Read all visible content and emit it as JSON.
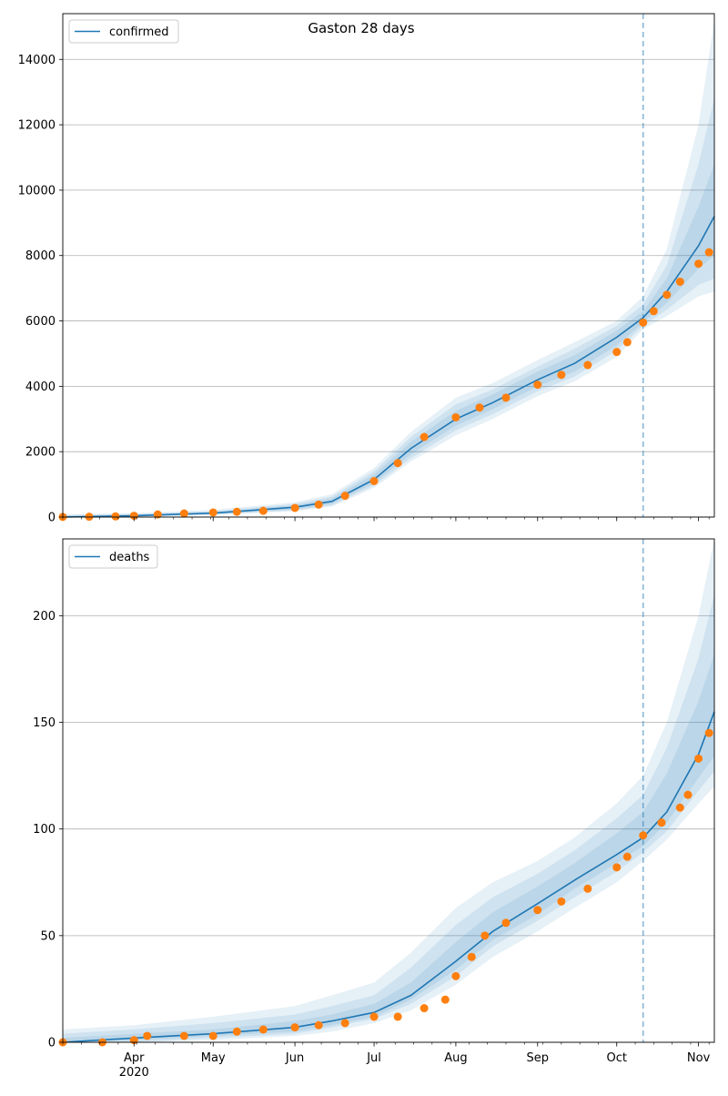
{
  "title": "Gaston 28 days",
  "colors": {
    "model": "#1f77b4",
    "observed": "#ff7f0e",
    "band": "#1f77b4",
    "grid": "#b0b0b0",
    "forecast_line": "#1f77b4"
  },
  "x_axis": {
    "start_date": "2020-03-05",
    "end_date": "2020-11-07",
    "month_ticks": [
      {
        "date": "2020-04-01",
        "label": "Apr",
        "sub": "2020"
      },
      {
        "date": "2020-05-01",
        "label": "May",
        "sub": ""
      },
      {
        "date": "2020-06-01",
        "label": "Jun",
        "sub": ""
      },
      {
        "date": "2020-07-01",
        "label": "Jul",
        "sub": ""
      },
      {
        "date": "2020-08-01",
        "label": "Aug",
        "sub": ""
      },
      {
        "date": "2020-09-01",
        "label": "Sep",
        "sub": ""
      },
      {
        "date": "2020-10-01",
        "label": "Oct",
        "sub": ""
      },
      {
        "date": "2020-11-01",
        "label": "Nov",
        "sub": ""
      }
    ],
    "forecast_start": "2020-10-11"
  },
  "chart_data": [
    {
      "type": "line",
      "legend": "confirmed",
      "legend_position": "top-left",
      "grid": "horizontal",
      "ylim": [
        0,
        15400
      ],
      "yticks": [
        0,
        2000,
        4000,
        6000,
        8000,
        10000,
        12000,
        14000
      ],
      "model_curve": {
        "x": [
          "2020-03-05",
          "2020-04-01",
          "2020-05-01",
          "2020-06-01",
          "2020-06-15",
          "2020-07-01",
          "2020-07-15",
          "2020-08-01",
          "2020-08-15",
          "2020-09-01",
          "2020-09-15",
          "2020-10-01",
          "2020-10-11",
          "2020-10-20",
          "2020-11-01",
          "2020-11-07"
        ],
        "y": [
          0,
          40,
          120,
          300,
          480,
          1150,
          2100,
          3000,
          3500,
          4200,
          4700,
          5500,
          6100,
          6900,
          8300,
          9200
        ]
      },
      "bands": [
        {
          "upper": [
            80,
            120,
            220,
            450,
            700,
            1500,
            2600,
            3650,
            4100,
            4800,
            5350,
            6000,
            6750,
            8200,
            12000,
            15200
          ],
          "lower": [
            0,
            10,
            60,
            180,
            320,
            900,
            1700,
            2500,
            3000,
            3700,
            4150,
            4900,
            5750,
            6150,
            6750,
            6900
          ]
        },
        {
          "upper": [
            60,
            90,
            180,
            400,
            630,
            1400,
            2450,
            3450,
            3900,
            4600,
            5150,
            5850,
            6500,
            7700,
            10800,
            12800
          ],
          "lower": [
            0,
            15,
            75,
            200,
            360,
            970,
            1800,
            2650,
            3150,
            3850,
            4300,
            5100,
            5850,
            6350,
            7100,
            7300
          ]
        },
        {
          "upper": [
            40,
            70,
            150,
            360,
            570,
            1300,
            2300,
            3250,
            3750,
            4450,
            4950,
            5700,
            6300,
            7300,
            9500,
            10800
          ],
          "lower": [
            0,
            20,
            90,
            230,
            400,
            1040,
            1920,
            2800,
            3300,
            4000,
            4450,
            5250,
            5950,
            6550,
            7600,
            8000
          ]
        }
      ],
      "observed": {
        "x": [
          "2020-03-05",
          "2020-03-15",
          "2020-03-25",
          "2020-04-01",
          "2020-04-10",
          "2020-04-20",
          "2020-05-01",
          "2020-05-10",
          "2020-05-20",
          "2020-06-01",
          "2020-06-10",
          "2020-06-20",
          "2020-07-01",
          "2020-07-10",
          "2020-07-20",
          "2020-08-01",
          "2020-08-10",
          "2020-08-20",
          "2020-09-01",
          "2020-09-10",
          "2020-09-20",
          "2020-10-01",
          "2020-10-05",
          "2020-10-11",
          "2020-10-15",
          "2020-10-20",
          "2020-10-25",
          "2020-11-01",
          "2020-11-05"
        ],
        "y": [
          5,
          10,
          20,
          40,
          80,
          110,
          140,
          160,
          190,
          280,
          380,
          650,
          1100,
          1650,
          2450,
          3050,
          3350,
          3650,
          4050,
          4350,
          4650,
          5050,
          5350,
          5950,
          6300,
          6800,
          7200,
          7750,
          8100
        ]
      }
    },
    {
      "type": "line",
      "legend": "deaths",
      "legend_position": "top-left",
      "grid": "horizontal",
      "ylim": [
        0,
        236
      ],
      "yticks": [
        0,
        50,
        100,
        150,
        200
      ],
      "model_curve": {
        "x": [
          "2020-03-05",
          "2020-04-01",
          "2020-05-01",
          "2020-06-01",
          "2020-06-15",
          "2020-07-01",
          "2020-07-15",
          "2020-08-01",
          "2020-08-15",
          "2020-09-01",
          "2020-09-15",
          "2020-10-01",
          "2020-10-11",
          "2020-10-20",
          "2020-11-01",
          "2020-11-07"
        ],
        "y": [
          0,
          2,
          4,
          7,
          10,
          14,
          22,
          38,
          52,
          65,
          76,
          88,
          96,
          108,
          135,
          155
        ]
      },
      "bands": [
        {
          "upper": [
            6,
            8,
            12,
            17,
            22,
            28,
            42,
            63,
            75,
            85,
            96,
            112,
            125,
            150,
            200,
            236
          ],
          "lower": [
            0,
            0,
            1,
            3,
            5,
            9,
            15,
            27,
            40,
            52,
            63,
            75,
            85,
            95,
            112,
            120
          ]
        },
        {
          "upper": [
            4,
            6,
            9,
            13,
            17,
            22,
            35,
            55,
            68,
            79,
            90,
            105,
            116,
            138,
            180,
            210
          ],
          "lower": [
            0,
            0,
            2,
            4,
            7,
            11,
            18,
            31,
            45,
            57,
            68,
            80,
            89,
            99,
            118,
            127
          ]
        },
        {
          "upper": [
            2,
            4,
            6,
            10,
            13,
            18,
            28,
            47,
            61,
            73,
            84,
            98,
            108,
            126,
            160,
            182
          ],
          "lower": [
            0,
            1,
            3,
            5,
            8,
            12,
            20,
            34,
            48,
            60,
            72,
            84,
            92,
            103,
            124,
            134
          ]
        }
      ],
      "observed": {
        "x": [
          "2020-03-05",
          "2020-03-20",
          "2020-04-01",
          "2020-04-06",
          "2020-04-20",
          "2020-05-01",
          "2020-05-10",
          "2020-05-20",
          "2020-06-01",
          "2020-06-10",
          "2020-06-20",
          "2020-07-01",
          "2020-07-10",
          "2020-07-20",
          "2020-07-28",
          "2020-08-01",
          "2020-08-07",
          "2020-08-12",
          "2020-08-20",
          "2020-09-01",
          "2020-09-10",
          "2020-09-20",
          "2020-10-01",
          "2020-10-05",
          "2020-10-11",
          "2020-10-18",
          "2020-10-25",
          "2020-10-28",
          "2020-11-01",
          "2020-11-05"
        ],
        "y": [
          0,
          0,
          1,
          3,
          3,
          3,
          5,
          6,
          7,
          8,
          9,
          12,
          12,
          16,
          20,
          31,
          40,
          50,
          56,
          62,
          66,
          72,
          82,
          87,
          97,
          103,
          110,
          116,
          133,
          145
        ]
      }
    }
  ]
}
